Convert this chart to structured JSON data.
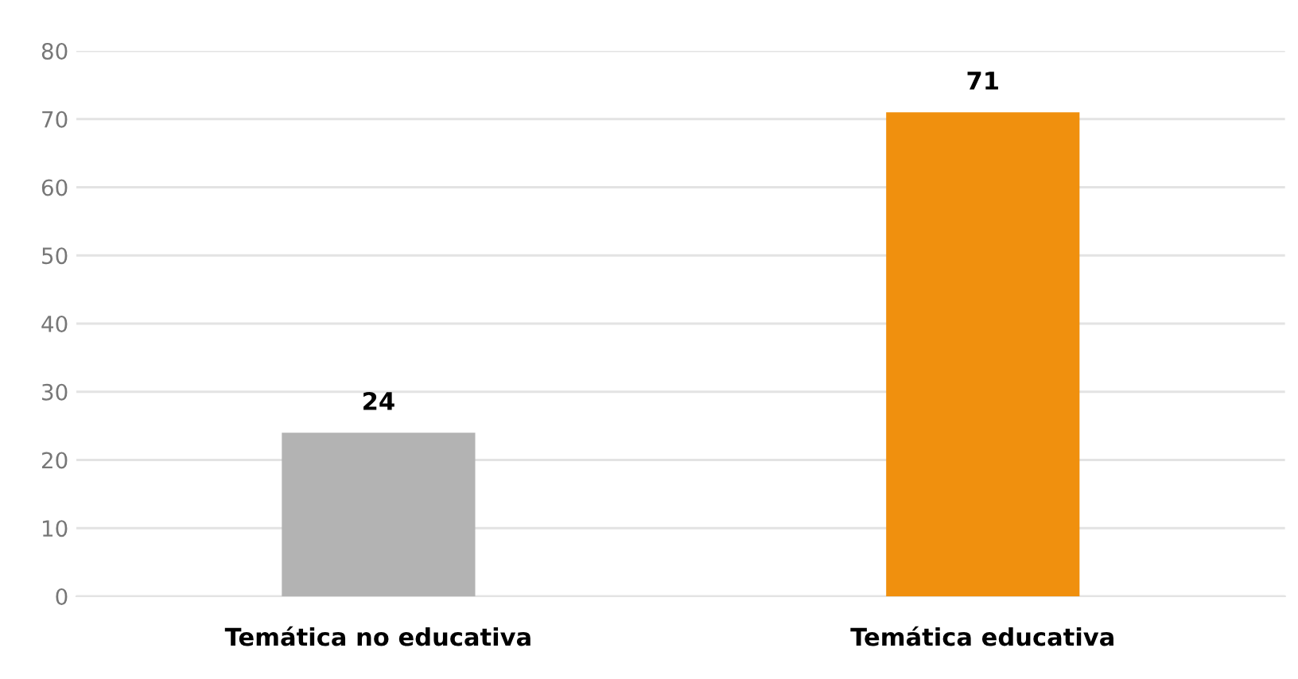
{
  "chart_data": {
    "type": "bar",
    "categories": [
      "Temática no educativa",
      "Temática educativa"
    ],
    "values": [
      24,
      71
    ],
    "colors": [
      "#b3b3b3",
      "#f0900e"
    ],
    "ylim": [
      0,
      80
    ],
    "yticks": [
      0,
      10,
      20,
      30,
      40,
      50,
      60,
      70,
      80
    ],
    "grid": "y",
    "data_labels": true
  }
}
